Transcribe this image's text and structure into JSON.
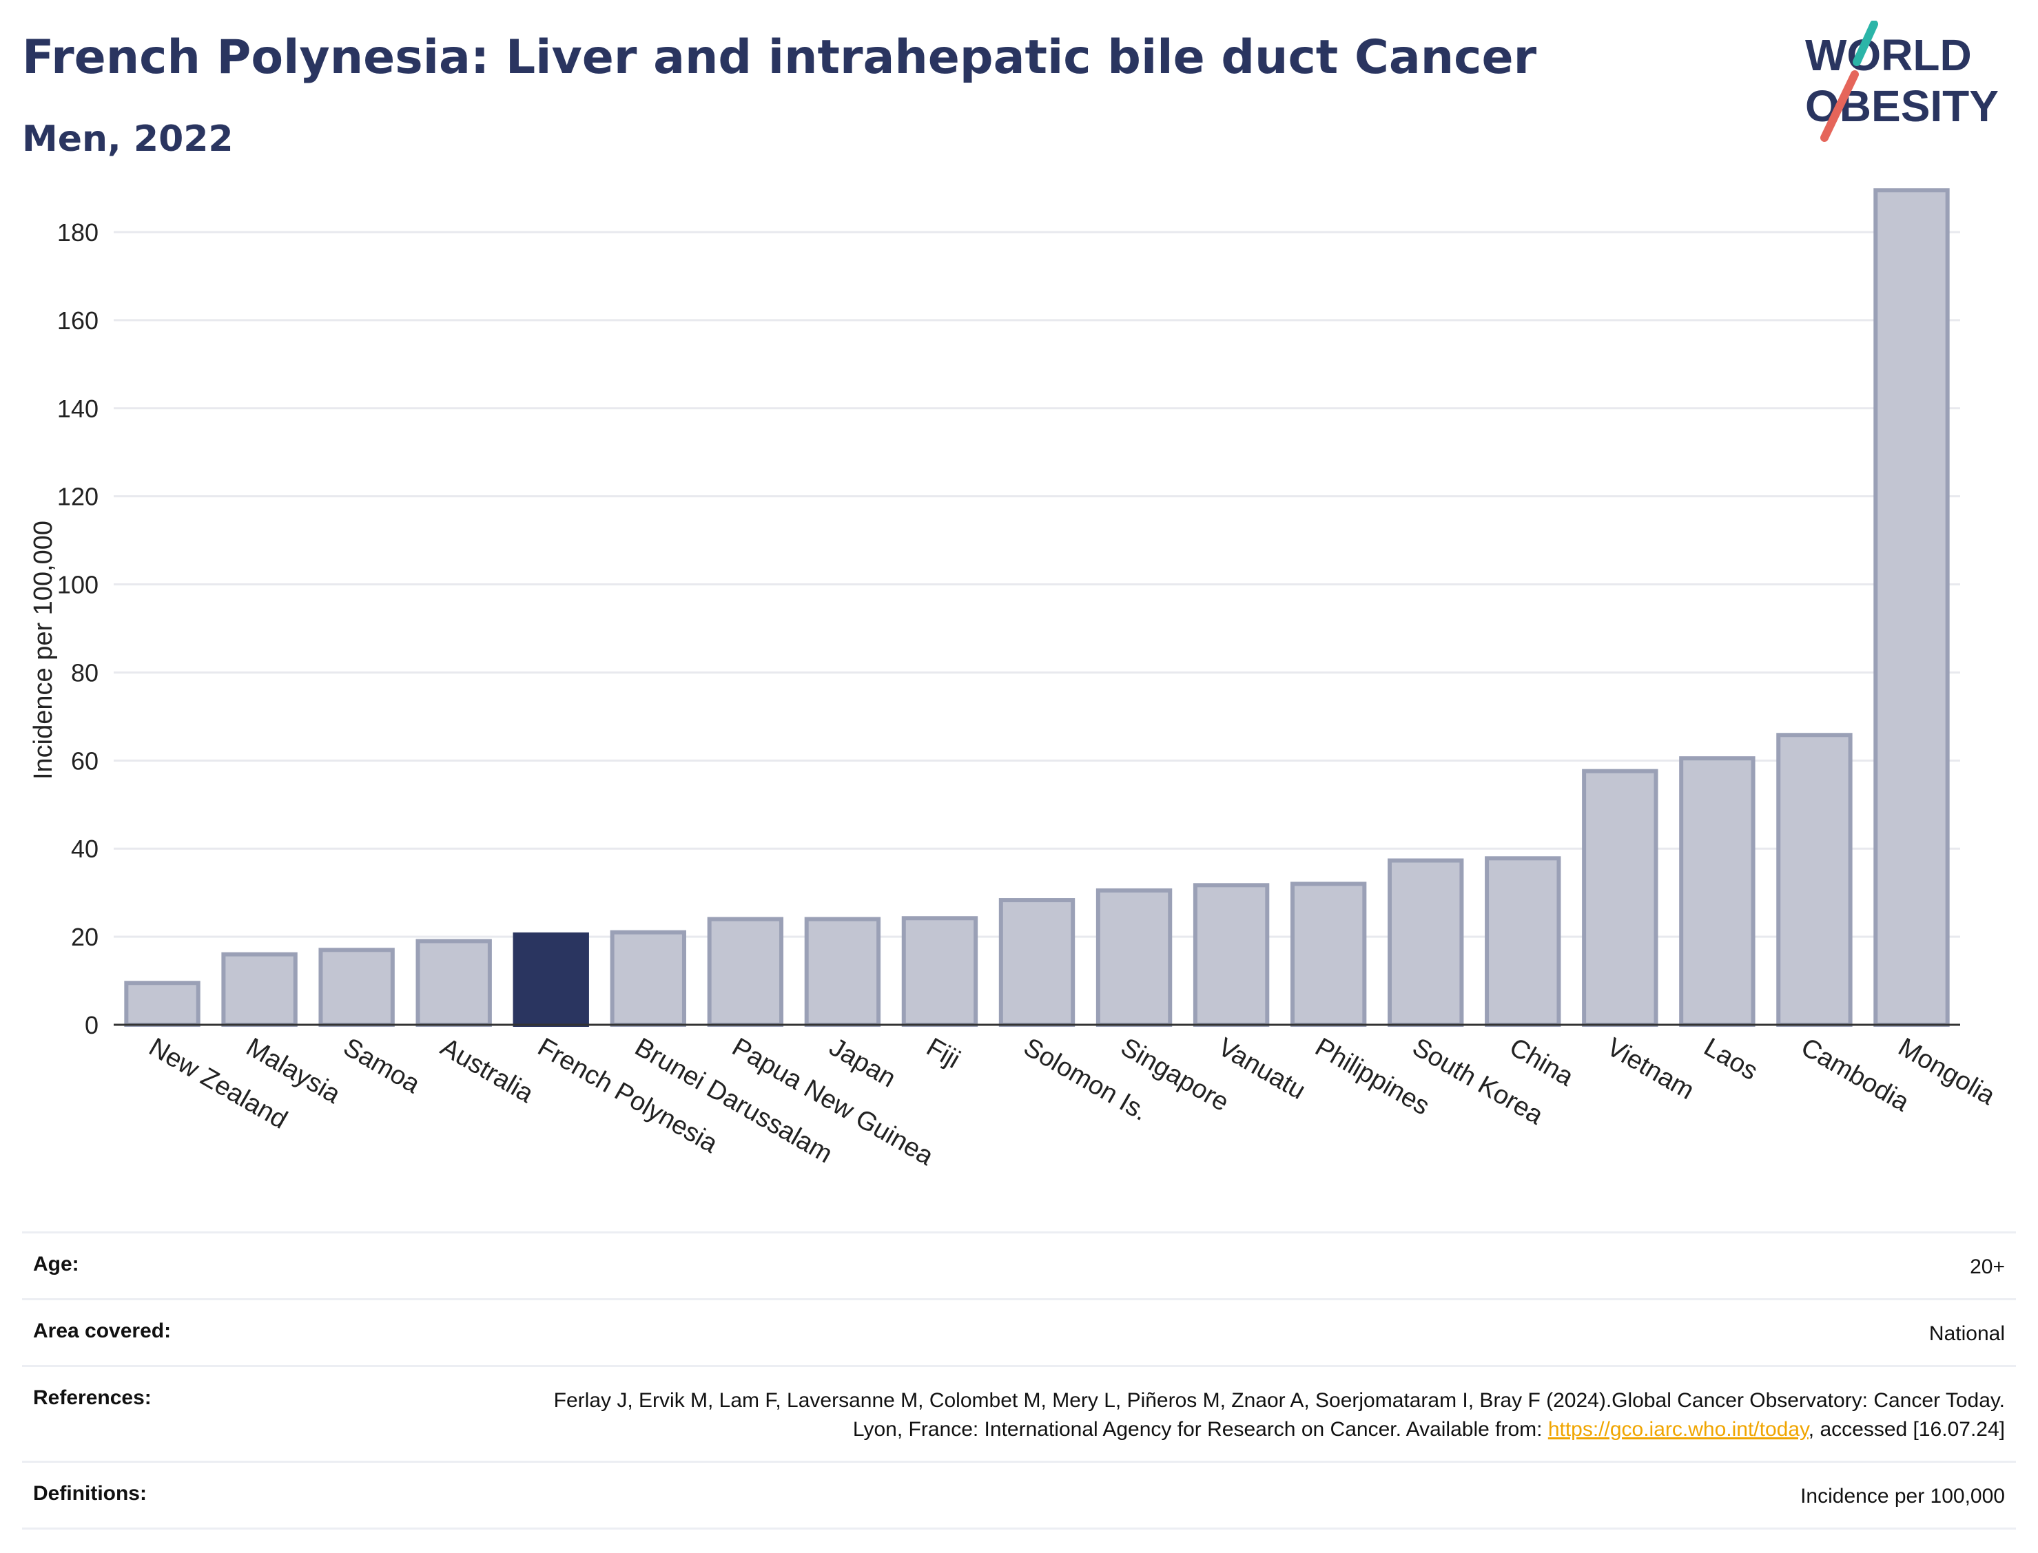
{
  "header": {
    "title": "French Polynesia: Liver and intrahepatic bile duct Cancer",
    "subtitle": "Men, 2022"
  },
  "logo": {
    "line1": "WORLD",
    "line2": "OBESITY"
  },
  "chart_data": {
    "type": "bar",
    "title": "French Polynesia: Liver and intrahepatic bile duct Cancer",
    "subtitle": "Men, 2022",
    "xlabel": "",
    "ylabel": "Incidence per 100,000",
    "ylim": [
      0,
      190
    ],
    "yticks": [
      0,
      20,
      40,
      60,
      80,
      100,
      120,
      140,
      160,
      180
    ],
    "grid": true,
    "categories": [
      "New Zealand",
      "Malaysia",
      "Samoa",
      "Australia",
      "French Polynesia",
      "Brunei Darussalam",
      "Papua New Guinea",
      "Japan",
      "Fiji",
      "Solomon Is.",
      "Singapore",
      "Vanuatu",
      "Philippines",
      "South Korea",
      "China",
      "Vietnam",
      "Laos",
      "Cambodia",
      "Mongolia"
    ],
    "values": [
      9.5,
      16,
      17,
      19,
      20.5,
      21,
      24,
      24,
      24.2,
      28.3,
      30.5,
      31.7,
      32,
      37.3,
      37.8,
      57.6,
      60.5,
      65.8,
      189.5
    ],
    "highlight": "French Polynesia",
    "colors": {
      "bar": "#c2c5d2",
      "bar_border": "#9aa0b6",
      "highlight": "#2a3560"
    }
  },
  "meta": {
    "age": {
      "label": "Age:",
      "value": "20+"
    },
    "area": {
      "label": "Area covered:",
      "value": "National"
    },
    "references": {
      "label": "References:",
      "text_before": "Ferlay J, Ervik M, Lam F, Laversanne M, Colombet M, Mery L, Piñeros M, Znaor A, Soerjomataram I, Bray F (2024).Global Cancer Observatory: Cancer Today. Lyon, France: International Agency for Research on Cancer. Available from: ",
      "link": "https://gco.iarc.who.int/today",
      "text_after": ", accessed [16.07.24]"
    },
    "definitions": {
      "label": "Definitions:",
      "value": "Incidence per 100,000"
    }
  }
}
